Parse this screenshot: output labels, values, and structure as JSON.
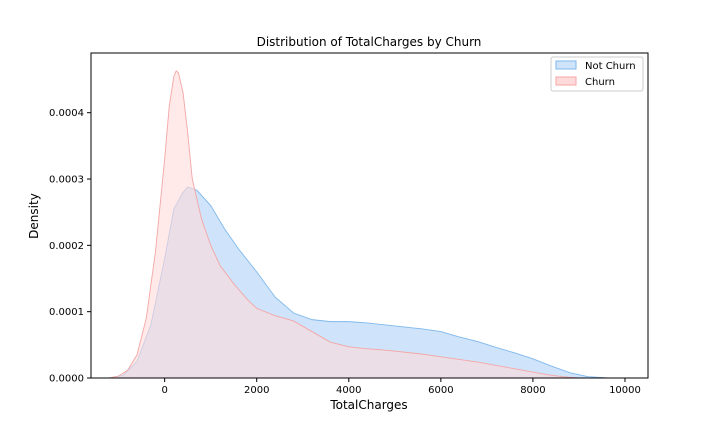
{
  "chart_data": {
    "type": "area",
    "title": "Distribution of TotalCharges by Churn",
    "xlabel": "TotalCharges",
    "ylabel": "Density",
    "xlim": [
      -1600,
      10500
    ],
    "ylim": [
      0,
      0.00049
    ],
    "xticks": [
      0,
      2000,
      4000,
      6000,
      8000,
      10000
    ],
    "xtick_labels": [
      "0",
      "2000",
      "4000",
      "6000",
      "8000",
      "10000"
    ],
    "yticks": [
      0,
      0.0001,
      0.0002,
      0.0003,
      0.0004
    ],
    "ytick_labels": [
      "0.0000",
      "0.0001",
      "0.0002",
      "0.0003",
      "0.0004"
    ],
    "grid": false,
    "legend_position": "top-right",
    "series": [
      {
        "name": "Not Churn",
        "fill": "#cfe4fb",
        "stroke": "#7fb8ec",
        "x": [
          -1200,
          -900,
          -600,
          -300,
          0,
          200,
          400,
          500,
          700,
          1000,
          1300,
          1600,
          2000,
          2400,
          2800,
          3200,
          3600,
          4000,
          4400,
          4800,
          5200,
          5600,
          6000,
          6400,
          6800,
          7200,
          7600,
          8000,
          8400,
          8800,
          9200,
          9600,
          10000
        ],
        "y": [
          0.0,
          4e-06,
          2.5e-05,
          8e-05,
          0.00018,
          0.000255,
          0.00028,
          0.000288,
          0.000283,
          0.00026,
          0.000225,
          0.000195,
          0.00016,
          0.000122,
          9.8e-05,
          8.8e-05,
          8.5e-05,
          8.5e-05,
          8.3e-05,
          8e-05,
          7.7e-05,
          7.4e-05,
          7e-05,
          6.2e-05,
          5.5e-05,
          4.6e-05,
          3.8e-05,
          2.9e-05,
          1.8e-05,
          8e-06,
          2e-06,
          3e-07,
          0.0
        ]
      },
      {
        "name": "Churn",
        "fill": "#ffdada",
        "stroke": "#f4a6a6",
        "x": [
          -1200,
          -1000,
          -800,
          -600,
          -400,
          -200,
          0,
          100,
          200,
          250,
          300,
          400,
          500,
          600,
          800,
          1000,
          1200,
          1500,
          1800,
          2000,
          2400,
          2800,
          3200,
          3600,
          4000,
          4400,
          4800,
          5200,
          5600,
          6000,
          6400,
          6800,
          7200,
          7600,
          8000,
          8400,
          8800,
          9000
        ],
        "y": [
          0.0,
          3e-06,
          1.2e-05,
          3.5e-05,
          9e-05,
          0.00019,
          0.00033,
          0.00041,
          0.000455,
          0.000463,
          0.00046,
          0.00043,
          0.00037,
          0.0003,
          0.00024,
          0.0002,
          0.00017,
          0.000142,
          0.000118,
          0.000105,
          9.4e-05,
          8.6e-05,
          7e-05,
          5.4e-05,
          4.7e-05,
          4.4e-05,
          4.2e-05,
          3.9e-05,
          3.6e-05,
          3.2e-05,
          2.8e-05,
          2.4e-05,
          1.9e-05,
          1.4e-05,
          9e-06,
          4e-06,
          1e-06,
          0.0
        ]
      }
    ],
    "overlap_fill": "#e1d3e6"
  }
}
